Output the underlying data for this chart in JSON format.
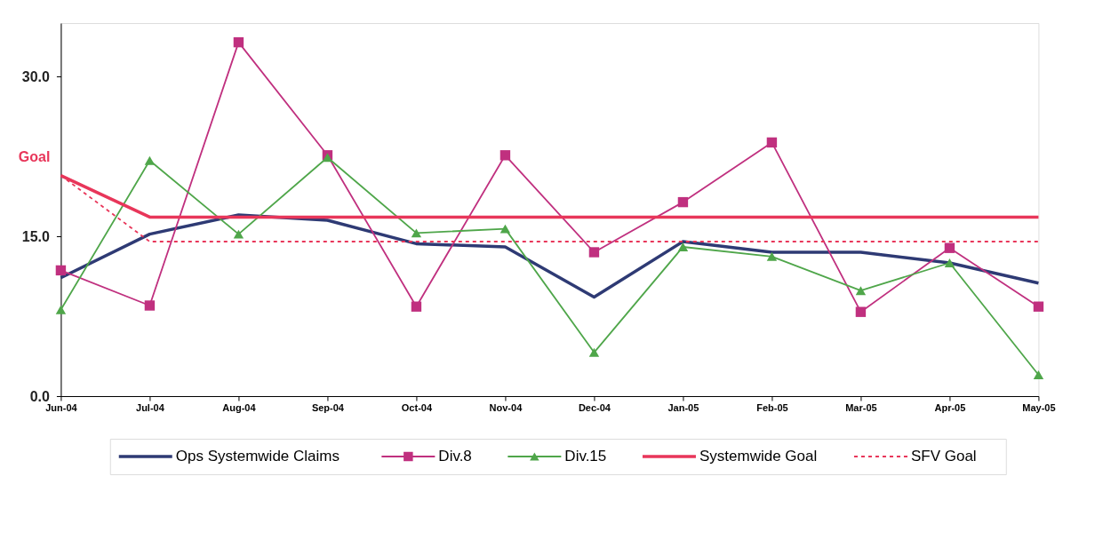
{
  "chart_data": {
    "type": "line",
    "categories": [
      "Jun-04",
      "Jul-04",
      "Aug-04",
      "Sep-04",
      "Oct-04",
      "Nov-04",
      "Dec-04",
      "Jan-05",
      "Feb-05",
      "Mar-05",
      "Apr-05",
      "May-05"
    ],
    "series": [
      {
        "name": "Ops Systemwide Claims",
        "color": "#2e3a74",
        "marker": "none",
        "line_style": "solid",
        "values": [
          11.1,
          15.2,
          17.0,
          16.5,
          14.3,
          14.0,
          9.3,
          14.5,
          13.5,
          13.5,
          12.5,
          10.6
        ]
      },
      {
        "name": "Div.8",
        "color": "#c0307f",
        "marker": "square",
        "line_style": "solid",
        "values": [
          11.8,
          8.5,
          33.2,
          22.6,
          8.4,
          22.6,
          13.5,
          18.2,
          23.8,
          7.9,
          13.9,
          8.4
        ]
      },
      {
        "name": "Div.15",
        "color": "#4fa64a",
        "marker": "triangle",
        "line_style": "solid",
        "values": [
          8.1,
          22.1,
          15.2,
          22.4,
          15.3,
          15.7,
          4.1,
          14.0,
          13.1,
          9.9,
          12.5,
          2.0
        ]
      },
      {
        "name": "Systemwide Goal",
        "color": "#e8365a",
        "marker": "none",
        "line_style": "solid",
        "values": [
          20.7,
          16.8,
          16.8,
          16.8,
          16.8,
          16.8,
          16.8,
          16.8,
          16.8,
          16.8,
          16.8,
          16.8
        ]
      },
      {
        "name": "SFV Goal",
        "color": "#e8365a",
        "marker": "none",
        "line_style": "dashed",
        "values": [
          20.7,
          14.5,
          14.5,
          14.5,
          14.5,
          14.5,
          14.5,
          14.5,
          14.5,
          14.5,
          14.5,
          14.5
        ]
      }
    ],
    "ylim": [
      0,
      35
    ],
    "yticks": [
      {
        "value": 0,
        "label": "0.0"
      },
      {
        "value": 15,
        "label": "15.0"
      },
      {
        "value": 30,
        "label": "30.0"
      }
    ],
    "grid": false,
    "legend": "bottom",
    "annotations": [
      "Goal"
    ]
  }
}
